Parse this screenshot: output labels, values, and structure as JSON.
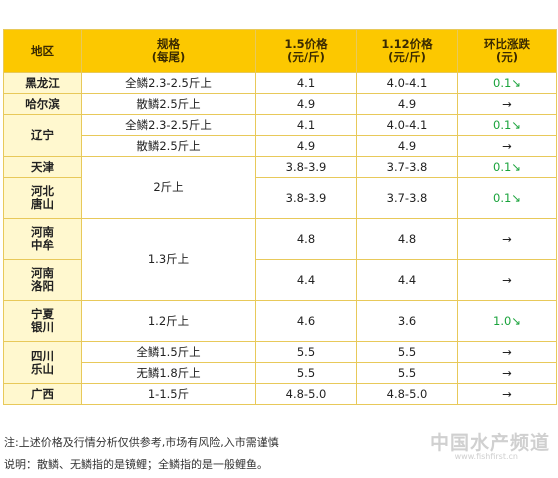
{
  "headers": {
    "region": "地区",
    "spec_line1": "规格",
    "spec_line2": "(每尾)",
    "price_a_line1": "1.5价格",
    "price_a_line2": "(元/斤)",
    "price_b_line1": "1.12价格",
    "price_b_line2": "(元/斤)",
    "change_line1": "环比涨跌",
    "change_line2": "(元)"
  },
  "regions": {
    "heilongjiang": "黑龙江",
    "haerbin": "哈尔滨",
    "liaoning": "辽宁",
    "tianjin": "天津",
    "hebei_tangshan": [
      "河北",
      "唐山"
    ],
    "henan_zhongmou": [
      "河南",
      "中牟"
    ],
    "henan_luoyang": [
      "河南",
      "洛阳"
    ],
    "ningxia_yinchuan": [
      "宁夏",
      "银川"
    ],
    "sichuan_leshan": [
      "四川",
      "乐山"
    ],
    "guangxi": "广西"
  },
  "rows": {
    "hlj_full": {
      "spec": "全鳞2.3-2.5斤上",
      "p1": "4.1",
      "p2": "4.0-4.1",
      "change": "0.1↘"
    },
    "hlj_mirror": {
      "spec": "散鳞2.5斤上",
      "p1": "4.9",
      "p2": "4.9",
      "change": "→"
    },
    "ln_full": {
      "spec": "全鳞2.3-2.5斤上",
      "p1": "4.1",
      "p2": "4.0-4.1",
      "change": "0.1↘"
    },
    "ln_mirror": {
      "spec": "散鳞2.5斤上",
      "p1": "4.9",
      "p2": "4.9",
      "change": "→"
    },
    "tj": {
      "p1": "3.8-3.9",
      "p2": "3.7-3.8",
      "change": "0.1↘"
    },
    "hb_ts": {
      "p1": "3.8-3.9",
      "p2": "3.7-3.8",
      "change": "0.1↘"
    },
    "tj_hb_spec": "2斤上",
    "hn_spec": "1.3斤上",
    "hn_zm": {
      "p1": "4.8",
      "p2": "4.8",
      "change": "→"
    },
    "hn_ly": {
      "p1": "4.4",
      "p2": "4.4",
      "change": "→"
    },
    "nx_yc": {
      "spec": "1.2斤上",
      "p1": "4.6",
      "p2": "3.6",
      "change": "1.0↘"
    },
    "sc_full": {
      "spec": "全鳞1.5斤上",
      "p1": "5.5",
      "p2": "5.5",
      "change": "→"
    },
    "sc_none": {
      "spec": "无鳞1.8斤上",
      "p1": "5.5",
      "p2": "5.5",
      "change": "→"
    },
    "gx": {
      "spec": "1-1.5斤",
      "p1": "4.8-5.0",
      "p2": "4.8-5.0",
      "change": "→"
    }
  },
  "notes": {
    "line1": "注:上述价格及行情分析仅供参考,市场有风险,入市需谨慎",
    "line2": "说明：散鳞、无鳞指的是镜鲤；全鳞指的是一般鲤鱼。"
  },
  "watermark": {
    "text": "中国水产频道",
    "url": "www.fishfirst.cn"
  },
  "colors": {
    "header_bg": "#fcc800",
    "region_bg": "#fff8cf",
    "border": "#e8c95a",
    "up_green": "#1aa33c"
  }
}
